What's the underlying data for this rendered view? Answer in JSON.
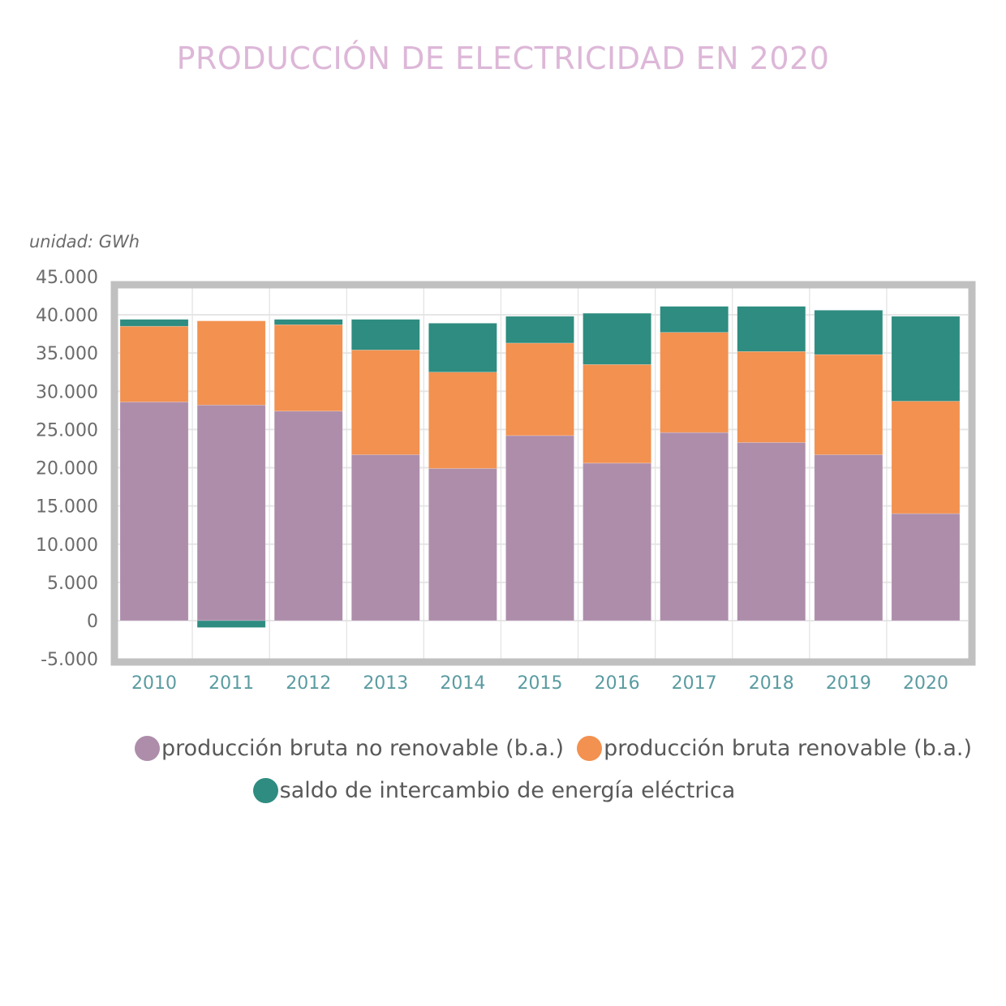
{
  "chart_data": {
    "type": "bar",
    "stacked": true,
    "title": "PRODUCCIÓN DE ELECTRICIDAD EN 2020",
    "unit_label": "unidad: GWh",
    "xlabel": "",
    "ylabel": "",
    "categories": [
      "2010",
      "2011",
      "2012",
      "2013",
      "2014",
      "2015",
      "2016",
      "2017",
      "2018",
      "2019",
      "2020"
    ],
    "series": [
      {
        "name": "producción bruta no renovable (b.a.)",
        "color": "#AE8DAB",
        "values": [
          28600,
          28200,
          27400,
          21700,
          19900,
          24200,
          20600,
          24600,
          23300,
          21700,
          14000
        ]
      },
      {
        "name": "producción bruta renovable (b.a.)",
        "color": "#F29150",
        "values": [
          9900,
          11000,
          11300,
          13700,
          12600,
          12100,
          12900,
          13100,
          11900,
          13100,
          14700
        ]
      },
      {
        "name": "saldo de intercambio de energía eléctrica",
        "color": "#2E8C80",
        "values": [
          900,
          -900,
          700,
          4000,
          6400,
          3500,
          6700,
          3400,
          5900,
          5800,
          11100
        ]
      }
    ],
    "ylim": [
      -5000,
      45000
    ],
    "yticks": [
      45000,
      40000,
      35000,
      30000,
      25000,
      20000,
      15000,
      10000,
      5000,
      0,
      -5000
    ],
    "ytick_labels": [
      "45.000",
      "40.000",
      "35.000",
      "30.000",
      "25.000",
      "20.000",
      "15.000",
      "10.000",
      "5.000",
      "0",
      "-5.000"
    ],
    "grid": true,
    "legend_position": "bottom"
  }
}
